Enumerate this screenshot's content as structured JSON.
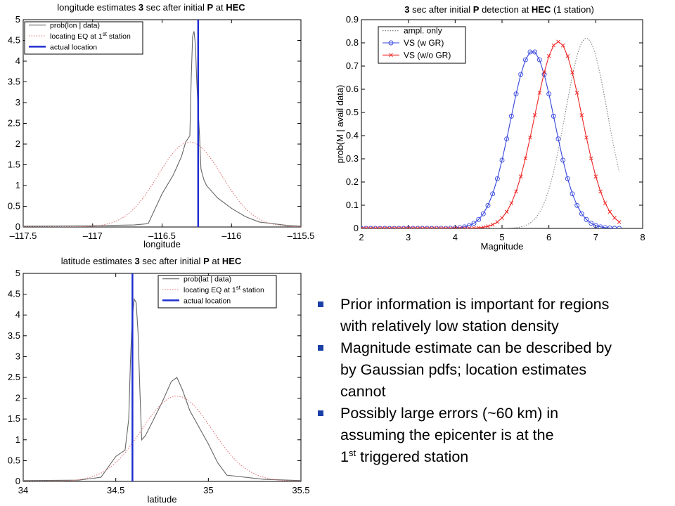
{
  "chart_data": [
    {
      "id": "lon",
      "type": "line",
      "title_parts": [
        {
          "text": "longitude estimates ",
          "bold": false
        },
        {
          "text": "3",
          "bold": true
        },
        {
          "text": " sec after initial ",
          "bold": false
        },
        {
          "text": "P",
          "bold": true
        },
        {
          "text": " at ",
          "bold": false
        },
        {
          "text": "HEC",
          "bold": true
        }
      ],
      "xlabel": "longitude",
      "xlim": [
        -117.5,
        -115.5
      ],
      "ylim": [
        0,
        5
      ],
      "xticks": [
        -117.5,
        -117,
        -116.5,
        -116,
        -115.5
      ],
      "xtick_labels": [
        "–117.5",
        "–117",
        "–116.5",
        "–116",
        "–115.5"
      ],
      "yticks": [
        0,
        0.5,
        1,
        1.5,
        2,
        2.5,
        3,
        3.5,
        4,
        4.5,
        5
      ],
      "ytick_labels": [
        "0",
        "0.5",
        "1",
        "1.5",
        "2",
        "2.5",
        "3",
        "3.5",
        "4",
        "4.5",
        "5"
      ],
      "grid": false,
      "legend_position": "top-left",
      "series": [
        {
          "name": "prob(lon | data)",
          "color": "#666666",
          "style": "solid",
          "x": [
            -117.5,
            -117.0,
            -116.7,
            -116.6,
            -116.5,
            -116.42,
            -116.36,
            -116.33,
            -116.3,
            -116.29,
            -116.28,
            -116.27,
            -116.26,
            -116.25,
            -116.24,
            -116.23,
            -116.22,
            -116.2,
            -116.18,
            -116.1,
            -116.0,
            -115.9,
            -115.8,
            -115.6,
            -115.5
          ],
          "y": [
            0.02,
            0.03,
            0.05,
            0.08,
            0.8,
            1.25,
            1.7,
            2.05,
            2.2,
            3.6,
            4.6,
            4.72,
            4.4,
            3.5,
            2.8,
            2.2,
            1.4,
            1.15,
            1.0,
            0.7,
            0.45,
            0.25,
            0.12,
            0.04,
            0.02
          ]
        },
        {
          "name": "locating EQ at 1st station",
          "legend_sup": "st",
          "color": "#e07070",
          "style": "dotted",
          "gaussian": {
            "mu": -116.3,
            "peak": 2.05,
            "sigma": 0.23,
            "x_from": -117.5,
            "x_to": -115.5
          }
        },
        {
          "name": "actual location",
          "color": "#1f2fd0",
          "style": "vline",
          "x": -116.24
        }
      ]
    },
    {
      "id": "mag",
      "type": "line",
      "title_parts": [
        {
          "text": "3",
          "bold": true
        },
        {
          "text": " sec after initial ",
          "bold": false
        },
        {
          "text": "P",
          "bold": true
        },
        {
          "text": " detection at ",
          "bold": false
        },
        {
          "text": "HEC",
          "bold": true
        },
        {
          "text": " (1 station)",
          "bold": false
        }
      ],
      "xlabel": "Magnitude",
      "ylabel": "prob(M | avail data)",
      "xlim": [
        2,
        8
      ],
      "ylim": [
        0,
        0.9
      ],
      "xticks": [
        2,
        3,
        4,
        5,
        6,
        7,
        8
      ],
      "xtick_labels": [
        "2",
        "3",
        "4",
        "5",
        "6",
        "7",
        "8"
      ],
      "yticks": [
        0,
        0.1,
        0.2,
        0.3,
        0.4,
        0.5,
        0.6,
        0.7,
        0.8,
        0.9
      ],
      "ytick_labels": [
        "0",
        "0.1",
        "0.2",
        "0.3",
        "0.4",
        "0.5",
        "0.6",
        "0.7",
        "0.8",
        "0.9"
      ],
      "grid": false,
      "legend_position": "top-left",
      "series": [
        {
          "name": "ampl. only",
          "color": "#777777",
          "style": "dotted",
          "gaussian": {
            "mu": 6.8,
            "peak": 0.82,
            "sigma": 0.45,
            "x_from": 2.0,
            "x_to": 7.5
          }
        },
        {
          "name": "VS (w GR)",
          "color": "#3344dd",
          "style": "solid",
          "marker": "circle",
          "gaussian": {
            "mu": 5.65,
            "peak": 0.765,
            "sigma": 0.47,
            "x_from": 2.0,
            "x_to": 7.5,
            "step": 0.1
          }
        },
        {
          "name": "VS (w/o GR)",
          "color": "#ee2222",
          "style": "solid",
          "marker": "x",
          "gaussian": {
            "mu": 6.2,
            "peak": 0.805,
            "sigma": 0.5,
            "x_from": 2.0,
            "x_to": 7.5,
            "step": 0.1
          }
        }
      ]
    },
    {
      "id": "lat",
      "type": "line",
      "title_parts": [
        {
          "text": "latitude estimates ",
          "bold": false
        },
        {
          "text": "3",
          "bold": true
        },
        {
          "text": " sec after initial ",
          "bold": false
        },
        {
          "text": "P",
          "bold": true
        },
        {
          "text": " at ",
          "bold": false
        },
        {
          "text": "HEC",
          "bold": true
        }
      ],
      "xlabel": "latitude",
      "xlim": [
        34,
        35.5
      ],
      "ylim": [
        0,
        5
      ],
      "xticks": [
        34,
        34.5,
        35,
        35.5
      ],
      "xtick_labels": [
        "34",
        "34.5",
        "35",
        "35.5"
      ],
      "yticks": [
        0,
        0.5,
        1,
        1.5,
        2,
        2.5,
        3,
        3.5,
        4,
        4.5,
        5
      ],
      "ytick_labels": [
        "0",
        "0.5",
        "1",
        "1.5",
        "2",
        "2.5",
        "3",
        "3.5",
        "4",
        "4.5",
        "5"
      ],
      "grid": false,
      "legend_position": "top-right",
      "series": [
        {
          "name": "prob(lat | data)",
          "color": "#666666",
          "style": "solid",
          "x": [
            34.0,
            34.3,
            34.42,
            34.5,
            34.55,
            34.57,
            34.58,
            34.59,
            34.6,
            34.61,
            34.62,
            34.63,
            34.64,
            34.66,
            34.7,
            34.75,
            34.8,
            34.83,
            34.86,
            34.9,
            35.0,
            35.05,
            35.1,
            35.3,
            35.5
          ],
          "y": [
            0.02,
            0.03,
            0.1,
            0.6,
            0.75,
            1.5,
            3.0,
            4.0,
            4.38,
            4.3,
            3.6,
            2.2,
            1.0,
            1.1,
            1.45,
            1.9,
            2.4,
            2.5,
            2.2,
            1.7,
            0.9,
            0.45,
            0.15,
            0.05,
            0.02
          ]
        },
        {
          "name": "locating EQ at 1st station",
          "legend_sup": "st",
          "color": "#e07070",
          "style": "dotted",
          "gaussian": {
            "mu": 34.83,
            "peak": 2.05,
            "sigma": 0.19,
            "x_from": 34.0,
            "x_to": 35.5
          }
        },
        {
          "name": "actual location",
          "color": "#1f2fd0",
          "style": "vline",
          "x": 34.59
        }
      ]
    }
  ],
  "notes": [
    {
      "lines": [
        "Prior information is important for regions",
        "with relatively low station density"
      ]
    },
    {
      "lines": [
        "Magnitude estimate can be described by",
        "by Gaussian pdfs; location estimates",
        "cannot"
      ]
    },
    {
      "lines": [
        "Possibly large errors (~60 km)  in",
        "assuming the epicenter is at the"
      ],
      "last_line": {
        "main": "1",
        "sup": "st",
        "rest": " triggered station"
      }
    }
  ]
}
